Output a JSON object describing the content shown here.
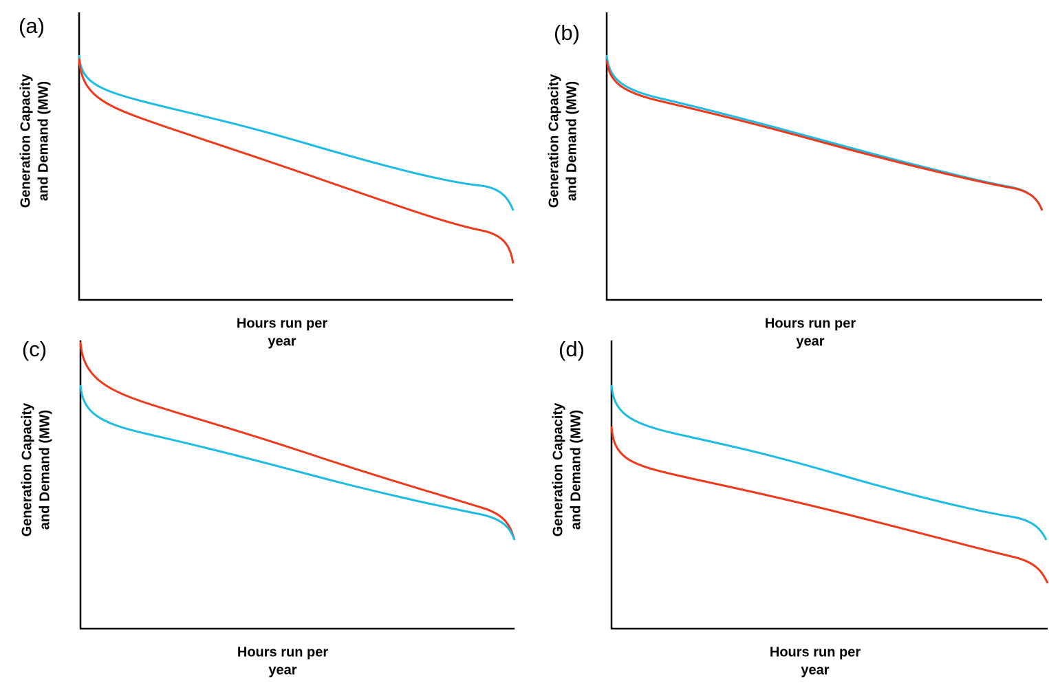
{
  "panels": [
    {
      "label": "(a)",
      "y_label": [
        "Generation Capacity",
        "and Demand (MW)"
      ],
      "x_label": [
        "Hours run per",
        "year"
      ]
    },
    {
      "label": "(b)",
      "y_label": [
        "Generation Capacity",
        "and Demand (MW)"
      ],
      "x_label": [
        "Hours run per",
        "year"
      ]
    },
    {
      "label": "(c)",
      "y_label": [
        "Generation Capacity",
        "and Demand (MW)"
      ],
      "x_label": [
        "Hours run per",
        "year"
      ]
    },
    {
      "label": "(d)",
      "y_label": [
        "Generation Capacity",
        "and Demand (MW)"
      ],
      "x_label": [
        "Hours run per",
        "year"
      ]
    }
  ]
}
